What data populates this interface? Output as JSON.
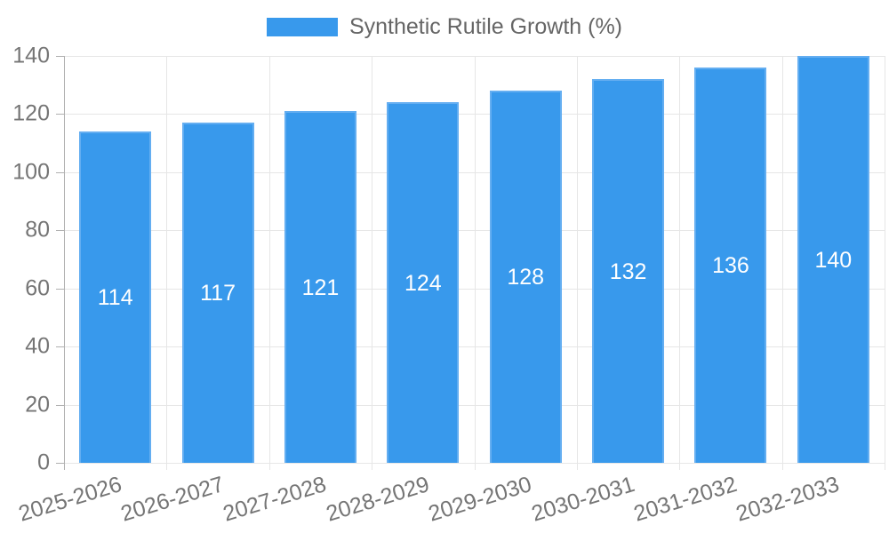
{
  "chart_data": {
    "type": "bar",
    "title": "Synthetic Rutile Growth (%)",
    "categories": [
      "2025-2026",
      "2026-2027",
      "2027-2028",
      "2028-2029",
      "2029-2030",
      "2030-2031",
      "2031-2032",
      "2032-2033"
    ],
    "values": [
      114,
      117,
      121,
      124,
      128,
      132,
      136,
      140
    ],
    "bar_value_labels": [
      "114",
      "117",
      "121",
      "124",
      "128",
      "132",
      "136",
      "140"
    ],
    "xlabel": "",
    "ylabel": "",
    "ylim": [
      0,
      140
    ],
    "yticks": [
      0,
      20,
      40,
      60,
      80,
      100,
      120,
      140
    ],
    "grid": true,
    "legend_position": "top",
    "colors": {
      "bar_fill": "#3899ec",
      "bar_border": "#64aef1",
      "value_label_text": "#ffffff",
      "axis_text": "#757575",
      "legend_text": "#666666",
      "gridline": "#e6e6e6",
      "axis_line": "#b0b0b0",
      "background": "#ffffff"
    }
  }
}
